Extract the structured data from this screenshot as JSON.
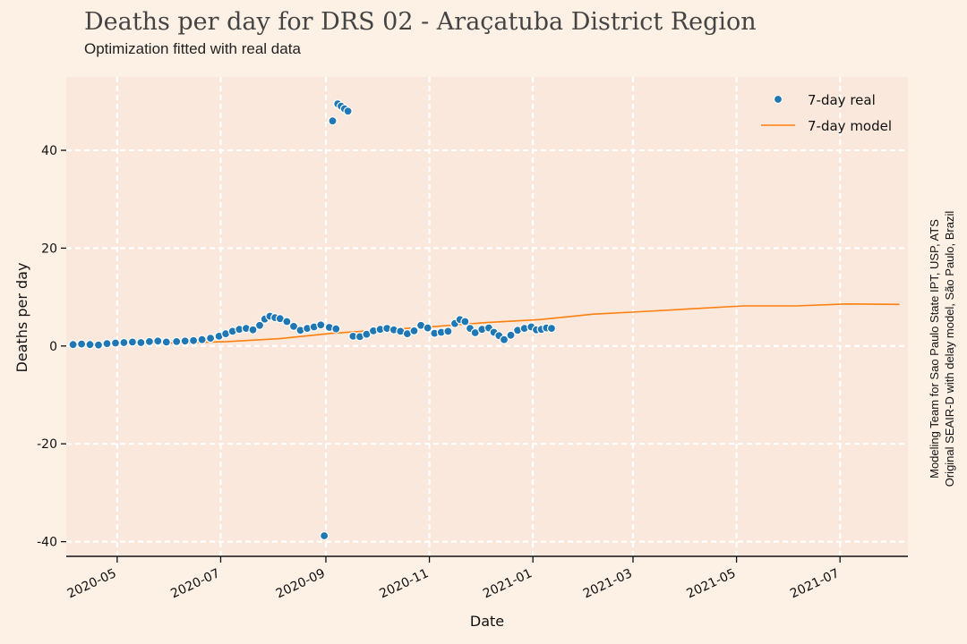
{
  "header": {
    "title": "Deaths per day for DRS 02 - Araçatuba District Region",
    "subtitle": "Optimization fitted with real data"
  },
  "credits": {
    "line1": "Modeling Team for Sao Paulo State IPT, USP, ATS",
    "line2": "Original SEAIR-D with delay model, São Paulo, Brazil"
  },
  "colors": {
    "background": "#fdf1e6",
    "plot_area": "#f9e8db",
    "grid": "#ffffff",
    "real": "#1f77b4",
    "model": "#ff7f0e"
  },
  "chart_data": {
    "type": "scatter",
    "xlabel": "Date",
    "ylabel": "Deaths per day",
    "xlim": [
      "2020-04-01",
      "2021-08-10"
    ],
    "ylim": [
      -43,
      55
    ],
    "grid": true,
    "legend_position": "top-right",
    "x_ticks": [
      "2020-05",
      "2020-07",
      "2020-09",
      "2020-11",
      "2021-01",
      "2021-03",
      "2021-05",
      "2021-07"
    ],
    "y_ticks": [
      "-40",
      "-20",
      "0",
      "20",
      "40"
    ],
    "series": [
      {
        "name": "7-day real",
        "kind": "scatter",
        "points": [
          [
            "2020-04-05",
            0.3
          ],
          [
            "2020-04-10",
            0.4
          ],
          [
            "2020-04-15",
            0.3
          ],
          [
            "2020-04-20",
            0.2
          ],
          [
            "2020-04-25",
            0.5
          ],
          [
            "2020-04-30",
            0.6
          ],
          [
            "2020-05-05",
            0.7
          ],
          [
            "2020-05-10",
            0.8
          ],
          [
            "2020-05-15",
            0.7
          ],
          [
            "2020-05-20",
            0.9
          ],
          [
            "2020-05-25",
            1.0
          ],
          [
            "2020-05-30",
            0.8
          ],
          [
            "2020-06-05",
            0.9
          ],
          [
            "2020-06-10",
            1.0
          ],
          [
            "2020-06-15",
            1.1
          ],
          [
            "2020-06-20",
            1.3
          ],
          [
            "2020-06-25",
            1.6
          ],
          [
            "2020-06-30",
            2.0
          ],
          [
            "2020-07-04",
            2.5
          ],
          [
            "2020-07-08",
            3.0
          ],
          [
            "2020-07-12",
            3.4
          ],
          [
            "2020-07-16",
            3.6
          ],
          [
            "2020-07-20",
            3.3
          ],
          [
            "2020-07-24",
            4.2
          ],
          [
            "2020-07-27",
            5.5
          ],
          [
            "2020-07-30",
            6.1
          ],
          [
            "2020-08-02",
            5.8
          ],
          [
            "2020-08-05",
            5.6
          ],
          [
            "2020-08-09",
            5.0
          ],
          [
            "2020-08-13",
            4.0
          ],
          [
            "2020-08-17",
            3.2
          ],
          [
            "2020-08-21",
            3.6
          ],
          [
            "2020-08-25",
            3.9
          ],
          [
            "2020-08-29",
            4.3
          ],
          [
            "2020-08-31",
            -38.8
          ],
          [
            "2020-09-03",
            3.8
          ],
          [
            "2020-09-05",
            46.0
          ],
          [
            "2020-09-07",
            3.5
          ],
          [
            "2020-09-08",
            49.5
          ],
          [
            "2020-09-10",
            49.0
          ],
          [
            "2020-09-12",
            48.5
          ],
          [
            "2020-09-14",
            48.0
          ],
          [
            "2020-09-17",
            2.0
          ],
          [
            "2020-09-21",
            1.9
          ],
          [
            "2020-09-25",
            2.4
          ],
          [
            "2020-09-29",
            3.1
          ],
          [
            "2020-10-03",
            3.4
          ],
          [
            "2020-10-07",
            3.6
          ],
          [
            "2020-10-11",
            3.3
          ],
          [
            "2020-10-15",
            3.0
          ],
          [
            "2020-10-19",
            2.5
          ],
          [
            "2020-10-23",
            3.1
          ],
          [
            "2020-10-27",
            4.2
          ],
          [
            "2020-10-31",
            3.7
          ],
          [
            "2020-11-04",
            2.6
          ],
          [
            "2020-11-08",
            2.8
          ],
          [
            "2020-11-12",
            3.0
          ],
          [
            "2020-11-16",
            4.6
          ],
          [
            "2020-11-19",
            5.4
          ],
          [
            "2020-11-22",
            5.0
          ],
          [
            "2020-11-25",
            3.6
          ],
          [
            "2020-11-28",
            2.7
          ],
          [
            "2020-12-02",
            3.4
          ],
          [
            "2020-12-06",
            3.7
          ],
          [
            "2020-12-09",
            2.8
          ],
          [
            "2020-12-12",
            2.1
          ],
          [
            "2020-12-15",
            1.3
          ],
          [
            "2020-12-19",
            2.2
          ],
          [
            "2020-12-23",
            3.2
          ],
          [
            "2020-12-27",
            3.6
          ],
          [
            "2020-12-31",
            3.9
          ],
          [
            "2021-01-03",
            3.3
          ],
          [
            "2021-01-06",
            3.4
          ],
          [
            "2021-01-09",
            3.7
          ],
          [
            "2021-01-12",
            3.6
          ]
        ]
      },
      {
        "name": "7-day model",
        "kind": "line",
        "points": [
          [
            "2020-04-05",
            0.5
          ],
          [
            "2020-05-05",
            0.6
          ],
          [
            "2020-06-05",
            0.6
          ],
          [
            "2020-07-05",
            0.9
          ],
          [
            "2020-08-05",
            1.5
          ],
          [
            "2020-09-05",
            2.6
          ],
          [
            "2020-10-05",
            3.3
          ],
          [
            "2020-11-05",
            4.0
          ],
          [
            "2020-12-05",
            4.8
          ],
          [
            "2021-01-05",
            5.4
          ],
          [
            "2021-02-05",
            6.5
          ],
          [
            "2021-03-05",
            7.0
          ],
          [
            "2021-04-05",
            7.6
          ],
          [
            "2021-05-05",
            8.2
          ],
          [
            "2021-06-05",
            8.2
          ],
          [
            "2021-07-05",
            8.6
          ],
          [
            "2021-08-05",
            8.5
          ]
        ]
      }
    ]
  }
}
